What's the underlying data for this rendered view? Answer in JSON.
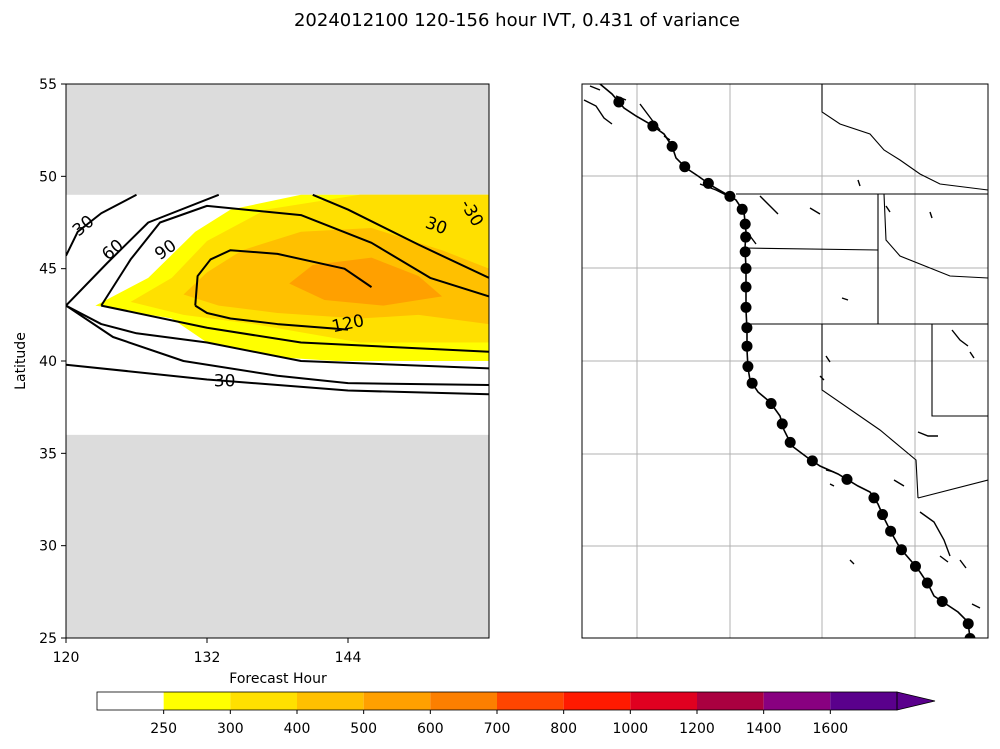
{
  "figure": {
    "title": "2024012100 120-156 hour IVT, 0.431 of variance"
  },
  "chart_data": [
    {
      "type": "contour",
      "xlabel": "Forecast Hour",
      "ylabel": "Latitude",
      "xlim": [
        120,
        156
      ],
      "ylim": [
        25,
        55
      ],
      "xticks": [
        "120",
        "132",
        "144"
      ],
      "yticks": [
        "25",
        "30",
        "35",
        "40",
        "45",
        "50",
        "55"
      ],
      "missing_bands": [
        [
          25,
          36
        ],
        [
          49,
          55
        ]
      ],
      "filled_levels": [
        {
          "min": 250,
          "color": "#ffff00",
          "polygon": [
            [
              122.5,
              43
            ],
            [
              127,
              44.5
            ],
            [
              131,
              47
            ],
            [
              134,
              48.2
            ],
            [
              140,
              49
            ],
            [
              156,
              49
            ],
            [
              156,
              40
            ],
            [
              143,
              40
            ],
            [
              138,
              40.2
            ],
            [
              132,
              41
            ],
            [
              129,
              42.3
            ]
          ]
        },
        {
          "min": 300,
          "color": "#ffe000",
          "polygon": [
            [
              125.5,
              43.2
            ],
            [
              129,
              44.5
            ],
            [
              132,
              46.5
            ],
            [
              137,
              48.2
            ],
            [
              145,
              49
            ],
            [
              156,
              49
            ],
            [
              156,
              41
            ],
            [
              145,
              41
            ],
            [
              136,
              42
            ],
            [
              130,
              42.5
            ]
          ]
        },
        {
          "min": 400,
          "color": "#ffc000",
          "polygon": [
            [
              130,
              43.6
            ],
            [
              132,
              44.8
            ],
            [
              135,
              46
            ],
            [
              140,
              47
            ],
            [
              146,
              47.2
            ],
            [
              152,
              46
            ],
            [
              156,
              45
            ],
            [
              156,
              42
            ],
            [
              150,
              42.5
            ],
            [
              145,
              42.3
            ],
            [
              138,
              42.6
            ],
            [
              133,
              43
            ]
          ]
        },
        {
          "min": 500,
          "color": "#ffa000",
          "polygon": [
            [
              139,
              44.2
            ],
            [
              141,
              45.2
            ],
            [
              146,
              45.6
            ],
            [
              150,
              44.6
            ],
            [
              152,
              43.5
            ],
            [
              147,
              43
            ],
            [
              142,
              43.3
            ]
          ]
        }
      ],
      "contours": [
        {
          "level": "30",
          "paths": [
            [
              [
                120,
                45.7
              ],
              [
                121,
                47
              ],
              [
                123,
                48
              ],
              [
                126,
                49
              ]
            ],
            [
              [
                120,
                43
              ],
              [
                124,
                41.3
              ],
              [
                130,
                40
              ],
              [
                138,
                39.2
              ],
              [
                144,
                38.8
              ],
              [
                156,
                38.7
              ]
            ],
            [
              [
                120,
                39.8
              ],
              [
                132,
                39
              ],
              [
                144,
                38.4
              ],
              [
                156,
                38.2
              ]
            ],
            [
              [
                141,
                49
              ],
              [
                144,
                48.2
              ],
              [
                150,
                46.3
              ],
              [
                156,
                44.5
              ]
            ]
          ]
        },
        {
          "level": "60",
          "paths": [
            [
              [
                120,
                43
              ],
              [
                123.5,
                45.3
              ],
              [
                127,
                47.5
              ],
              [
                133,
                49
              ]
            ],
            [
              [
                120,
                43
              ],
              [
                123,
                42
              ],
              [
                126,
                41.5
              ],
              [
                132,
                41
              ],
              [
                140,
                40
              ],
              [
                156,
                39.6
              ]
            ]
          ]
        },
        {
          "level": "90",
          "paths": [
            [
              [
                123,
                43
              ],
              [
                125.5,
                45.5
              ],
              [
                128,
                47.5
              ],
              [
                132,
                48.4
              ],
              [
                140,
                47.9
              ],
              [
                146,
                46.4
              ],
              [
                151,
                44.5
              ],
              [
                156,
                43.5
              ]
            ],
            [
              [
                123,
                43
              ],
              [
                132,
                41.8
              ],
              [
                140,
                41
              ],
              [
                156,
                40.5
              ]
            ]
          ]
        },
        {
          "level": "120",
          "paths": [
            [
              [
                131,
                43
              ],
              [
                131.2,
                44.6
              ],
              [
                132.3,
                45.5
              ],
              [
                134,
                46
              ],
              [
                138,
                45.8
              ],
              [
                143.7,
                45
              ],
              [
                146,
                44
              ]
            ],
            [
              [
                131,
                43
              ],
              [
                132,
                42.6
              ],
              [
                134,
                42.3
              ],
              [
                138,
                42
              ],
              [
                144,
                41.7
              ]
            ]
          ]
        }
      ],
      "contour_labels": [
        {
          "text": "30",
          "x": 121.5,
          "y": 47.3,
          "angle": -40
        },
        {
          "text": "60",
          "x": 124,
          "y": 46,
          "angle": -40
        },
        {
          "text": "90",
          "x": 128.5,
          "y": 46,
          "angle": -35
        },
        {
          "text": "120",
          "x": 144,
          "y": 42,
          "angle": -12
        },
        {
          "text": "30",
          "x": 133.5,
          "y": 38.9,
          "angle": 0
        },
        {
          "text": "30",
          "x": 151.5,
          "y": 47.3,
          "angle": 20
        },
        {
          "text": "-30",
          "x": 154.5,
          "y": 48,
          "angle": 60
        }
      ]
    },
    {
      "type": "map",
      "region": "West coast of North America",
      "markers_lat": [
        54,
        52.7,
        51.6,
        50.5,
        49.6,
        48.9,
        48.2,
        47.4,
        46.7,
        45.9,
        45,
        44,
        42.9,
        41.8,
        40.8,
        39.7,
        38.8,
        37.7,
        36.6,
        35.6,
        34.6,
        33.6,
        32.6,
        31.7,
        30.8,
        29.8,
        28.9,
        28,
        27,
        25.8,
        25
      ]
    }
  ],
  "colorbar": {
    "levels": [
      "250",
      "300",
      "400",
      "500",
      "600",
      "700",
      "800",
      "1000",
      "1200",
      "1400",
      "1600"
    ],
    "colors": [
      "#ffffff",
      "#ffff00",
      "#ffe000",
      "#ffc000",
      "#ffa000",
      "#fc7f00",
      "#ff4500",
      "#ff1a00",
      "#e00020",
      "#aa0040",
      "#880080",
      "#5a008c"
    ]
  }
}
